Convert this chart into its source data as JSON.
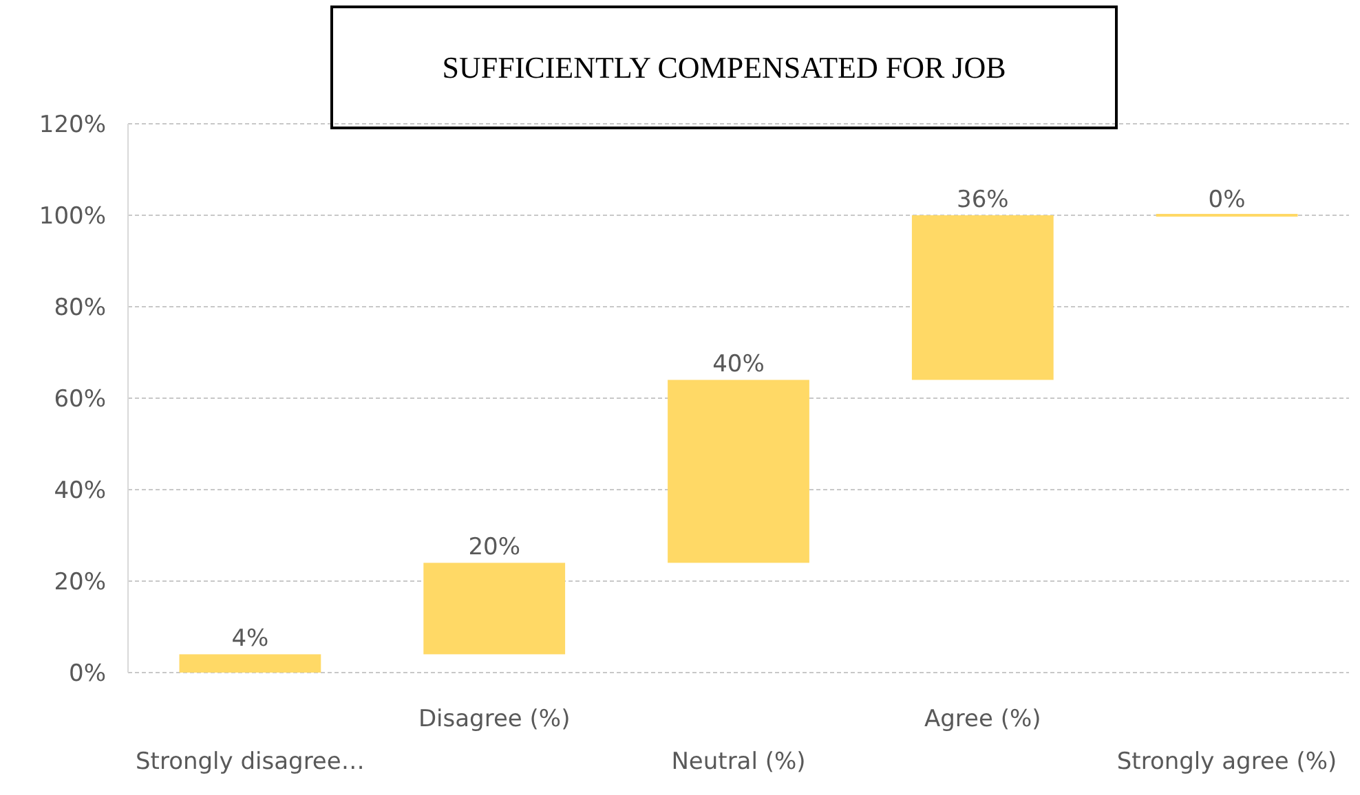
{
  "chart_data": {
    "type": "bar",
    "title": "SUFFICIENTLY COMPENSATED FOR JOB",
    "categories": [
      "Strongly disagree…",
      "Disagree (%)",
      "Neutral (%)",
      "Agree (%)",
      "Strongly agree (%)"
    ],
    "values": [
      4,
      20,
      40,
      36,
      0
    ],
    "base": [
      0,
      4,
      24,
      64,
      100
    ],
    "value_labels": [
      "4%",
      "20%",
      "40%",
      "36%",
      "0%"
    ],
    "color": "#ffd966",
    "ylim": [
      0,
      120
    ],
    "yticks": [
      {
        "value": 0,
        "label": "0%"
      },
      {
        "value": 20,
        "label": "20%"
      },
      {
        "value": 40,
        "label": "40%"
      },
      {
        "value": 60,
        "label": "60%"
      },
      {
        "value": 80,
        "label": "80%"
      },
      {
        "value": 100,
        "label": "100%"
      },
      {
        "value": 120,
        "label": "120%"
      }
    ],
    "grid": "y"
  }
}
